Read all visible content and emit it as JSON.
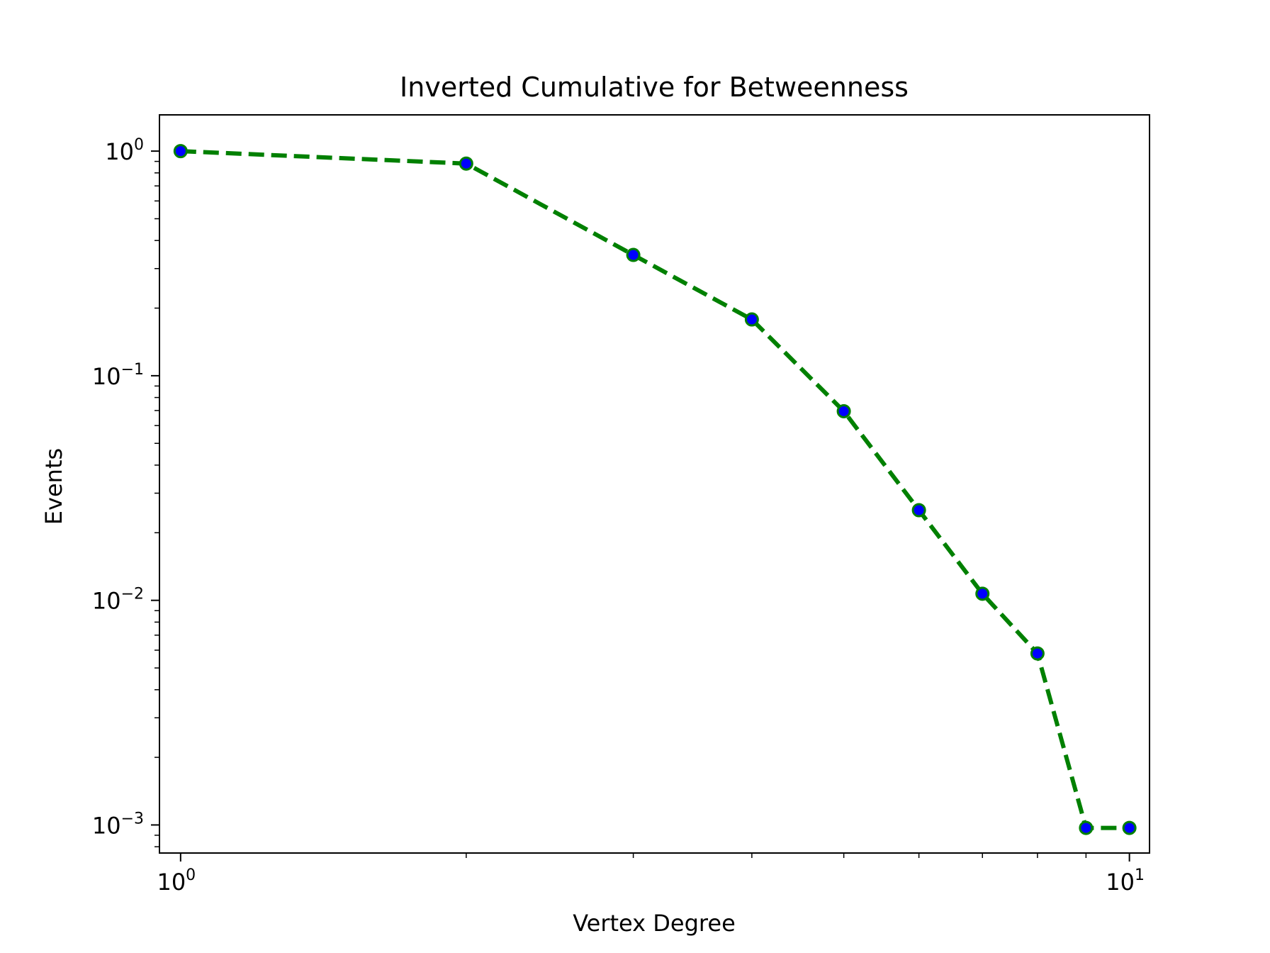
{
  "chart_data": {
    "type": "line",
    "title": "Inverted Cumulative for Betweenness",
    "xlabel": "Vertex Degree",
    "ylabel": "Events",
    "xscale": "log",
    "yscale": "log",
    "xlim": [
      0.95,
      10.5
    ],
    "ylim": [
      0.00075,
      1.45
    ],
    "grid": false,
    "legend": "none",
    "x_ticks": [
      {
        "base": "10",
        "exp": "0"
      },
      {
        "base": "10",
        "exp": "1"
      }
    ],
    "y_ticks": [
      {
        "base": "10",
        "exp": "0"
      },
      {
        "base": "10",
        "exp": "−1"
      },
      {
        "base": "10",
        "exp": "−2"
      },
      {
        "base": "10",
        "exp": "−3"
      }
    ],
    "series": [
      {
        "x": [
          1,
          2,
          3,
          4,
          5,
          6,
          7,
          8,
          9,
          10
        ],
        "y": [
          1.0,
          0.88,
          0.345,
          0.178,
          0.0695,
          0.0252,
          0.0107,
          0.0058,
          0.00097,
          0.00097
        ],
        "line_color": "#008000",
        "line_style": "dashed",
        "marker_face_color": "#0000ff",
        "marker_edge_color": "#008000"
      }
    ]
  }
}
